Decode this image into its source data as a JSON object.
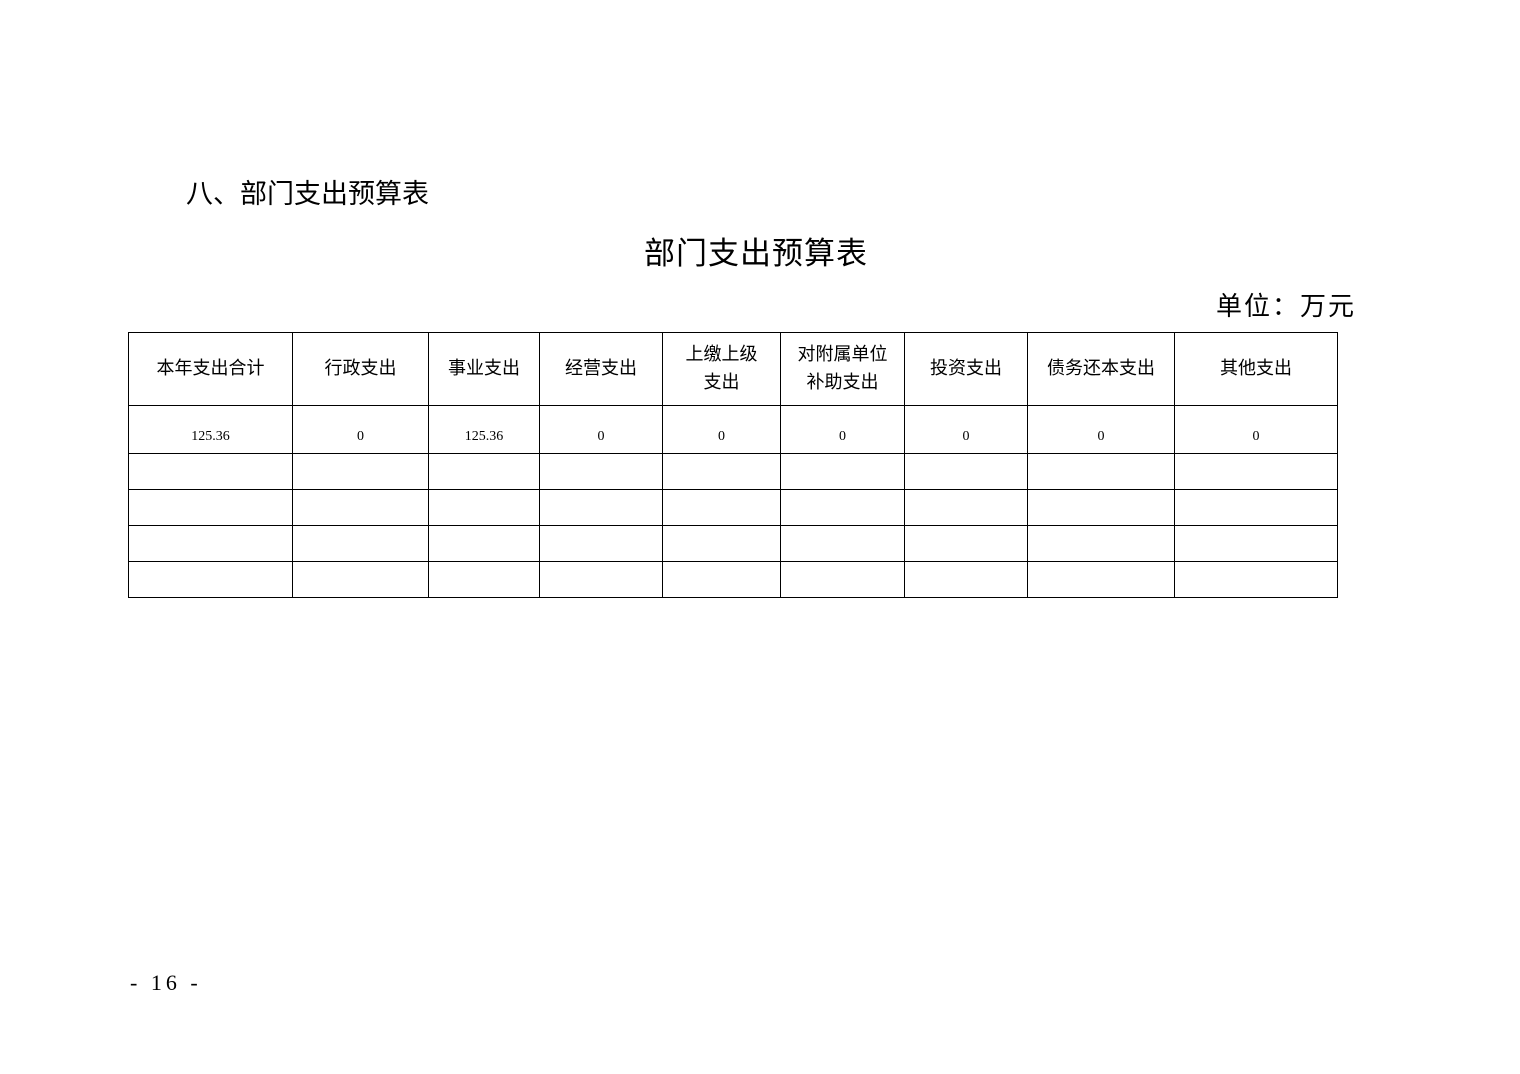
{
  "section_heading": "八、部门支出预算表",
  "title": "部门支出预算表",
  "unit": "单位：万元",
  "table": {
    "headers": [
      "本年支出合计",
      "行政支出",
      "事业支出",
      "经营支出",
      "上缴上级\n支出",
      "对附属单位\n补助支出",
      "投资支出",
      "债务还本支出",
      "其他支出"
    ],
    "rows": [
      [
        "125.36",
        "0",
        "125.36",
        "0",
        "0",
        "0",
        "0",
        "0",
        "0"
      ],
      [
        "",
        "",
        "",
        "",
        "",
        "",
        "",
        "",
        ""
      ],
      [
        "",
        "",
        "",
        "",
        "",
        "",
        "",
        "",
        ""
      ],
      [
        "",
        "",
        "",
        "",
        "",
        "",
        "",
        "",
        ""
      ],
      [
        "",
        "",
        "",
        "",
        "",
        "",
        "",
        "",
        ""
      ]
    ]
  },
  "page_number": "- 16 -"
}
